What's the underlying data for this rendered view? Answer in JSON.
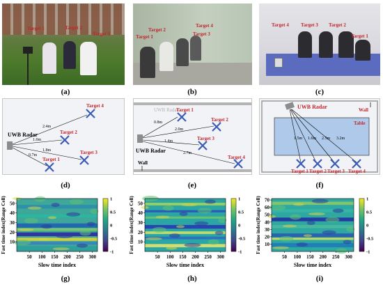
{
  "captions": [
    "(a)",
    "(b)",
    "(c)",
    "(d)",
    "(e)",
    "(f)",
    "(g)",
    "(h)",
    "(i)"
  ],
  "photo_targets": {
    "a": [
      "Target 1",
      "Target 2",
      "Target 3"
    ],
    "b": [
      "Target 1",
      "Target 2",
      "Target 3",
      "Target 4"
    ],
    "c": [
      "Target 1",
      "Target 2",
      "Target 3",
      "Target 4"
    ]
  },
  "diagram_d": {
    "radar": "UWB Radar",
    "targets": [
      "Target 1",
      "Target 2",
      "Target 3",
      "Target 4"
    ],
    "distances": [
      "0.7m",
      "1.0m",
      "1.8m",
      "2.4m"
    ]
  },
  "diagram_e": {
    "radar": "UWB Radar",
    "wall": "Wall",
    "targets": [
      "Target 1",
      "Target 2",
      "Target 3",
      "Target 4"
    ],
    "distances": [
      "0.8m",
      "2.0m",
      "1.4m",
      "2.7m"
    ]
  },
  "diagram_f": {
    "radar": "UWB Radar",
    "wall": "Wall",
    "table": "Table",
    "targets": [
      "Target 1",
      "Target 2",
      "Target 3",
      "Target 4"
    ],
    "distances": [
      "1.5m",
      "1.6m",
      "2.5m",
      "3.2m"
    ]
  },
  "heatmaps": [
    {
      "xlabel": "Slow time index",
      "ylabel": "Fast time index(Range Cell)",
      "xticks": [
        "50",
        "100",
        "150",
        "200",
        "250",
        "300"
      ],
      "yticks": [
        "10",
        "20",
        "30",
        "40",
        "50"
      ],
      "ymax": 55,
      "cbar": [
        "1",
        "0.5",
        "0",
        "-0.5",
        "-1"
      ]
    },
    {
      "xlabel": "Slow time index",
      "ylabel": "Fast time index(Range Cell)",
      "xticks": [
        "50",
        "100",
        "150",
        "200",
        "250",
        "300"
      ],
      "yticks": [
        "10",
        "20",
        "30",
        "40",
        "50"
      ],
      "ymax": 55,
      "cbar": [
        "1",
        "0.5",
        "0",
        "-0.5",
        "-1"
      ]
    },
    {
      "xlabel": "Slow time index",
      "ylabel": "Fast time index(Range Cell)",
      "xticks": [
        "50",
        "100",
        "150",
        "200",
        "250",
        "300"
      ],
      "yticks": [
        "10",
        "20",
        "30",
        "40",
        "50",
        "60",
        "70"
      ],
      "ymax": 72,
      "cbar": [
        "1",
        "0.5",
        "0",
        "-0.5",
        "-1"
      ]
    }
  ],
  "colors": {
    "target_label": "#c0262d",
    "cross": "#3b5bb5",
    "diagram_bg": "#f2f3f7",
    "table": "#aec9ea"
  }
}
